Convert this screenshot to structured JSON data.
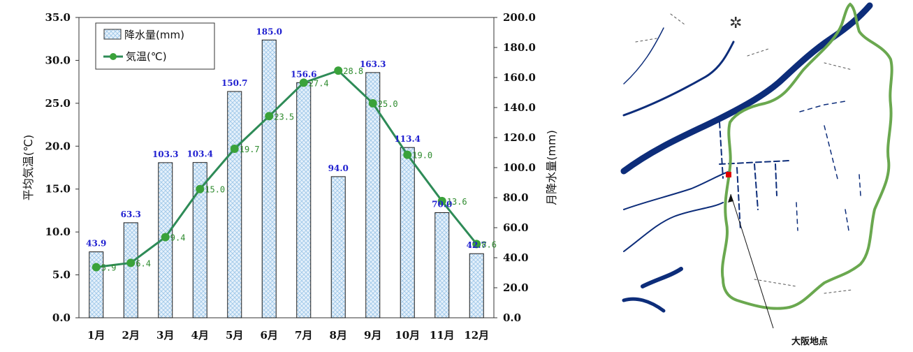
{
  "chart_data": {
    "type": "bar+line",
    "categories": [
      "1月",
      "2月",
      "3月",
      "4月",
      "5月",
      "6月",
      "7月",
      "8月",
      "9月",
      "10月",
      "11月",
      "12月"
    ],
    "series": [
      {
        "name": "降水量(mm)",
        "type": "bar",
        "axis": "right",
        "values": [
          43.9,
          63.3,
          103.3,
          103.4,
          150.7,
          185.0,
          156.6,
          94.0,
          163.3,
          113.4,
          70.0,
          42.7
        ],
        "labels": [
          "43.9",
          "63.3",
          "103.3",
          "103.4",
          "150.7",
          "185.0",
          "156.6",
          "94.0",
          "163.3",
          "113.4",
          "70.0",
          "42.7"
        ]
      },
      {
        "name": "気温(℃)",
        "type": "line",
        "axis": "left",
        "values": [
          5.9,
          6.4,
          9.4,
          15.0,
          19.7,
          23.5,
          27.4,
          28.8,
          25.0,
          19.0,
          13.6,
          8.6
        ],
        "labels": [
          "5.9",
          "6.4",
          "9.4",
          "15.0",
          "19.7",
          "23.5",
          "27.4",
          "28.8",
          "25.0",
          "19.0",
          "13.6",
          "8.6"
        ]
      }
    ],
    "ylabel_left": "平均気温(℃)",
    "ylabel_right": "月降水量(mm)",
    "ylim_left": [
      0,
      35
    ],
    "ylim_right": [
      0,
      200
    ],
    "yticks_left": [
      "0.0",
      "5.0",
      "10.0",
      "15.0",
      "20.0",
      "25.0",
      "30.0",
      "35.0"
    ],
    "yticks_right": [
      "0.0",
      "20.0",
      "40.0",
      "60.0",
      "80.0",
      "100.0",
      "120.0",
      "140.0",
      "160.0",
      "180.0",
      "200.0"
    ],
    "legend_position": "top-left",
    "colors": {
      "bar_fill": "#dcebf7",
      "bar_stroke": "#1a1a1a",
      "line": "#2e8b57",
      "marker": "#3aa23a",
      "bar_label": "#2020d0",
      "line_label": "#2e8b2e"
    }
  },
  "map": {
    "label": "大阪地点",
    "boundary_color": "#6aa84f",
    "river_color": "#0d2d7a",
    "point_color": "#e00000"
  }
}
